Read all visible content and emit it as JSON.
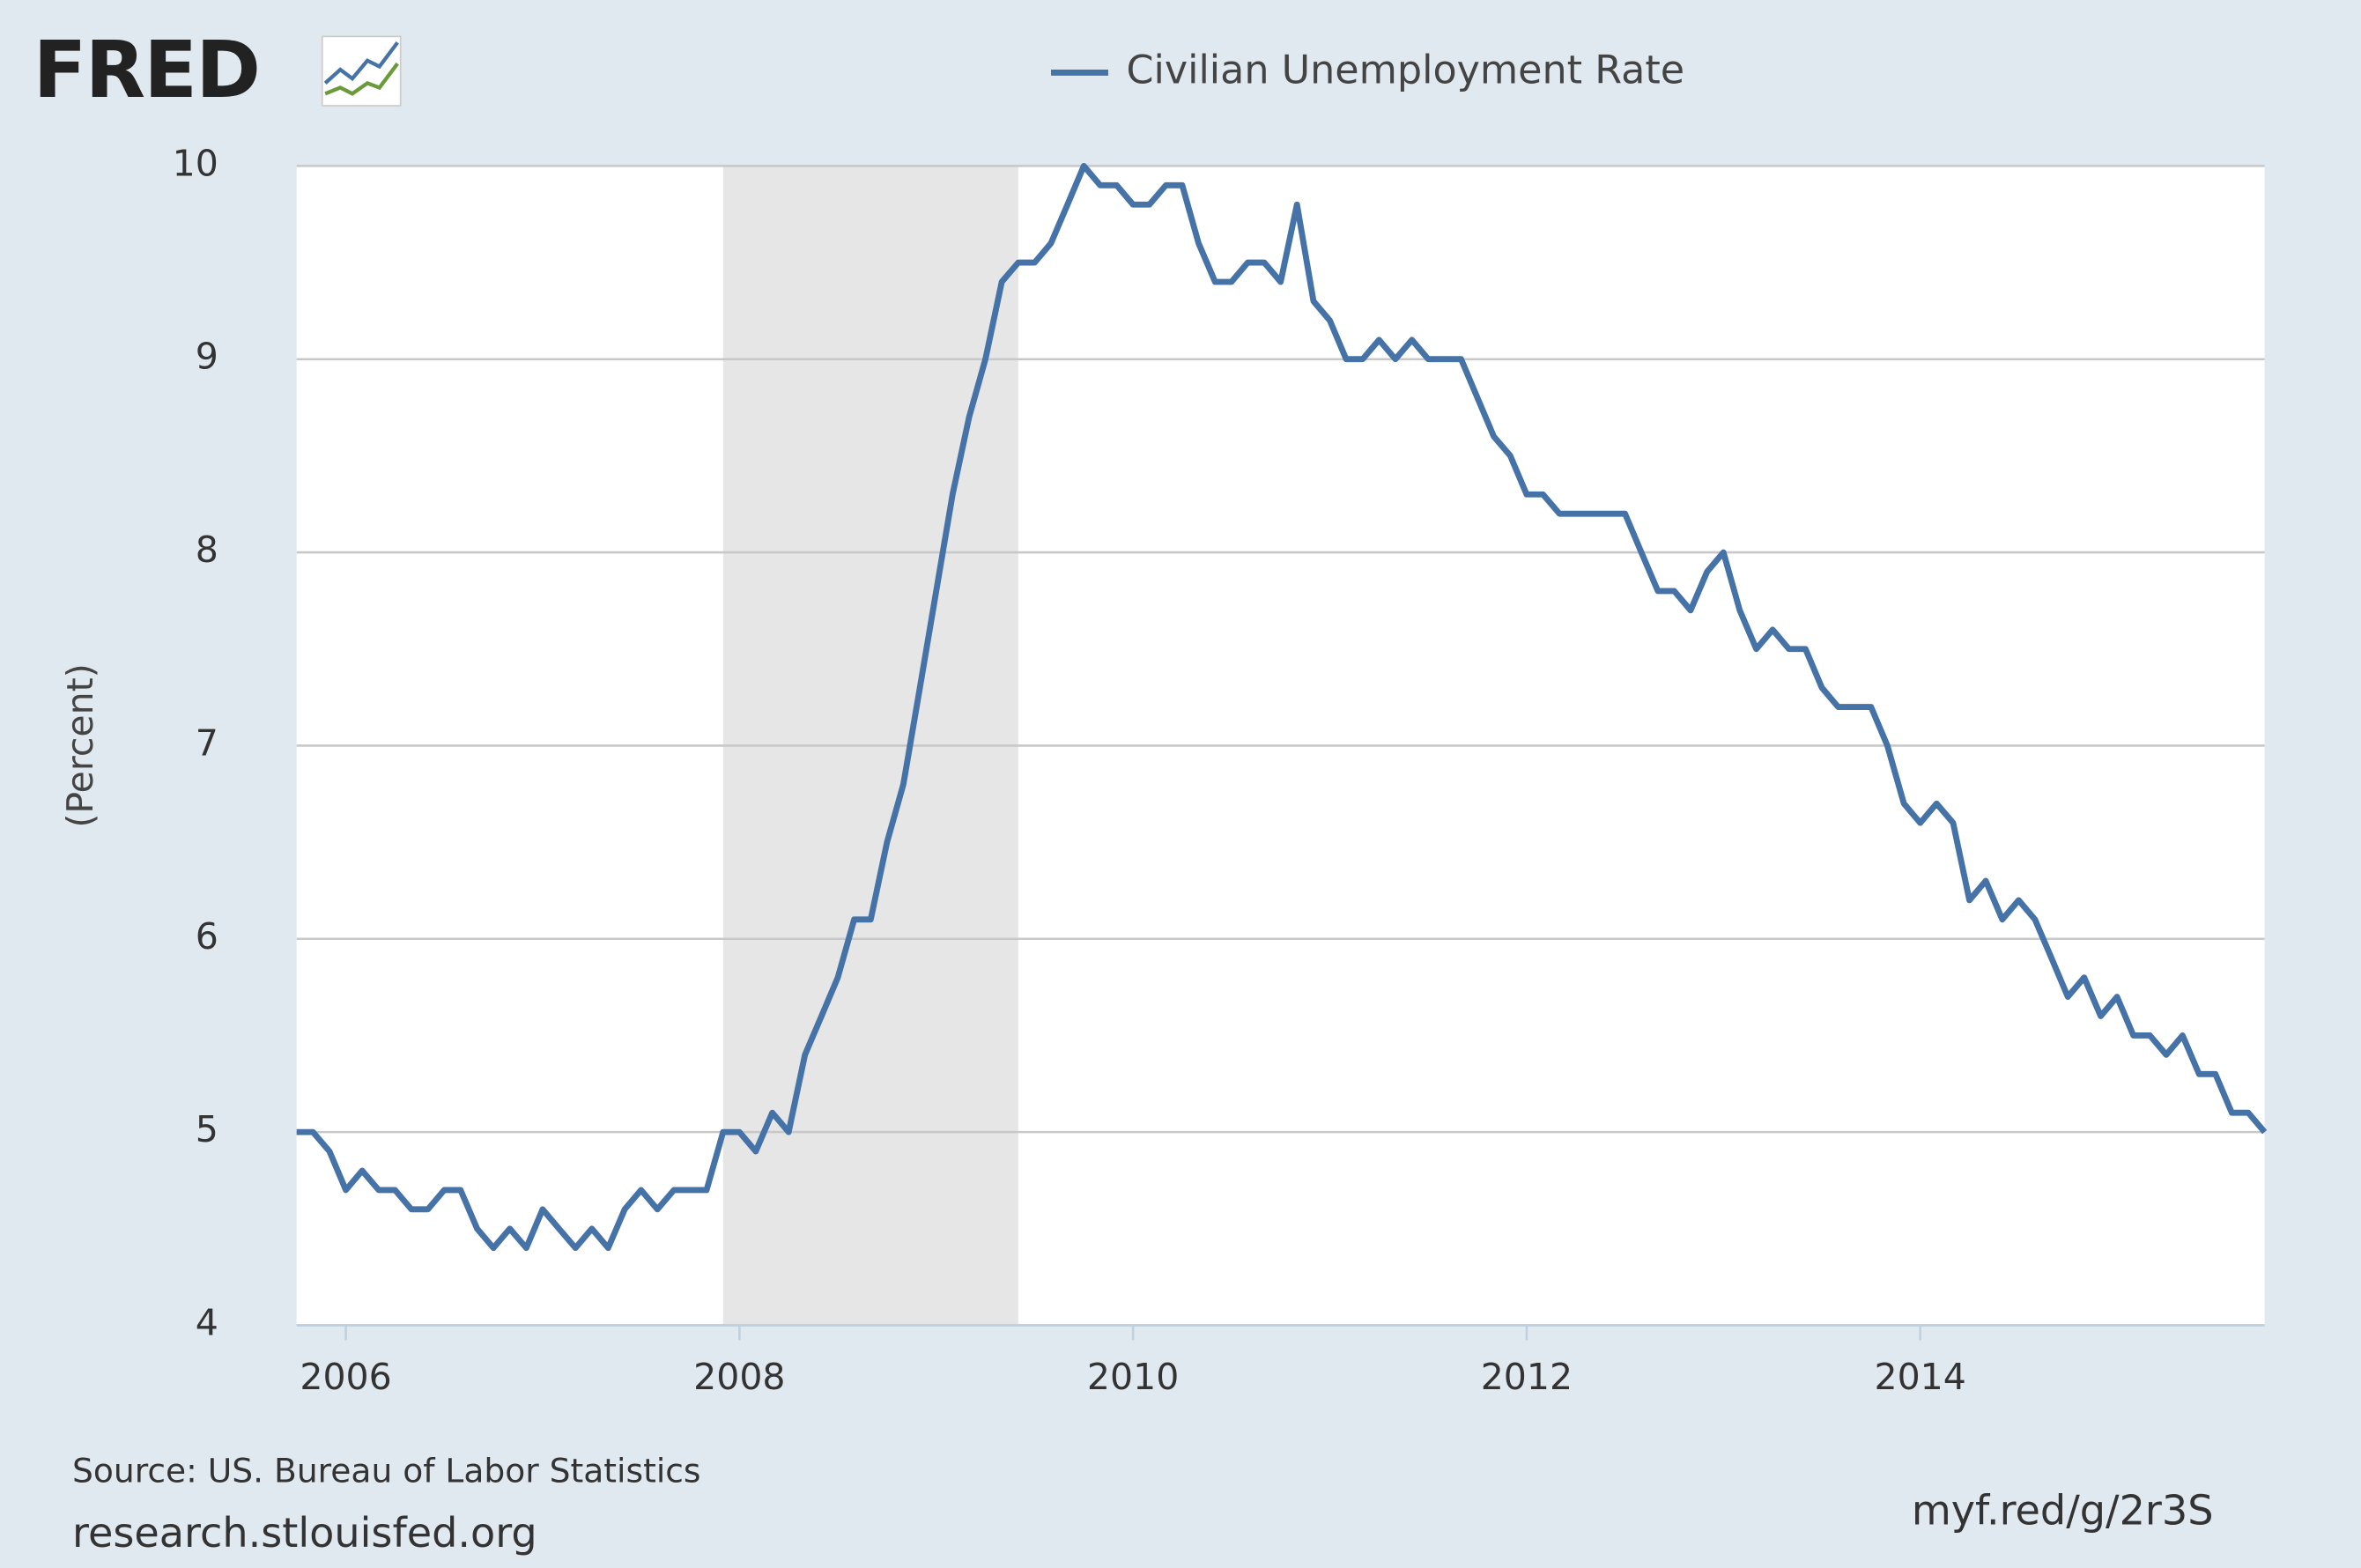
{
  "logo": "FRED",
  "chart_data": {
    "type": "line",
    "legend": "top",
    "grid": true,
    "y_label": "(Percent)",
    "source": "Source: US. Bureau of Labor Statistics",
    "site": "research.stlouisfed.org",
    "short_link": "myf.red/g/2r3S",
    "xlim": [
      2005.75,
      2015.75
    ],
    "xticks": [
      2006,
      2008,
      2010,
      2012,
      2014
    ],
    "ylim": [
      4,
      10
    ],
    "yticks": [
      4,
      5,
      6,
      7,
      8,
      9,
      10
    ],
    "shaded": [
      [
        2007.917,
        2009.417
      ]
    ],
    "shade_color": "#e6e6e6",
    "x": [
      2005.75,
      2005.833,
      2005.917,
      2006,
      2006.083,
      2006.167,
      2006.25,
      2006.333,
      2006.417,
      2006.5,
      2006.583,
      2006.667,
      2006.75,
      2006.833,
      2006.917,
      2007,
      2007.083,
      2007.167,
      2007.25,
      2007.333,
      2007.417,
      2007.5,
      2007.583,
      2007.667,
      2007.75,
      2007.833,
      2007.917,
      2008,
      2008.083,
      2008.167,
      2008.25,
      2008.333,
      2008.417,
      2008.5,
      2008.583,
      2008.667,
      2008.75,
      2008.833,
      2008.917,
      2009,
      2009.083,
      2009.167,
      2009.25,
      2009.333,
      2009.417,
      2009.5,
      2009.583,
      2009.667,
      2009.75,
      2009.833,
      2009.917,
      2010,
      2010.083,
      2010.167,
      2010.25,
      2010.333,
      2010.417,
      2010.5,
      2010.583,
      2010.667,
      2010.75,
      2010.833,
      2010.917,
      2011,
      2011.083,
      2011.167,
      2011.25,
      2011.333,
      2011.417,
      2011.5,
      2011.583,
      2011.667,
      2011.75,
      2011.833,
      2011.917,
      2012,
      2012.083,
      2012.167,
      2012.25,
      2012.333,
      2012.417,
      2012.5,
      2012.583,
      2012.667,
      2012.75,
      2012.833,
      2012.917,
      2013,
      2013.083,
      2013.167,
      2013.25,
      2013.333,
      2013.417,
      2013.5,
      2013.583,
      2013.667,
      2013.75,
      2013.833,
      2013.917,
      2014,
      2014.083,
      2014.167,
      2014.25,
      2014.333,
      2014.417,
      2014.5,
      2014.583,
      2014.667,
      2014.75,
      2014.833,
      2014.917,
      2015,
      2015.083,
      2015.167,
      2015.25,
      2015.333,
      2015.417,
      2015.5,
      2015.583,
      2015.667,
      2015.75
    ],
    "series": [
      {
        "name": "Civilian Unemployment Rate",
        "color": "#4572a7",
        "values": [
          5.0,
          5.0,
          4.9,
          4.7,
          4.8,
          4.7,
          4.7,
          4.6,
          4.6,
          4.7,
          4.7,
          4.5,
          4.4,
          4.5,
          4.4,
          4.6,
          4.5,
          4.4,
          4.5,
          4.4,
          4.6,
          4.7,
          4.6,
          4.7,
          4.7,
          4.7,
          5.0,
          5.0,
          4.9,
          5.1,
          5.0,
          5.4,
          5.6,
          5.8,
          6.1,
          6.1,
          6.5,
          6.8,
          7.3,
          7.8,
          8.3,
          8.7,
          9.0,
          9.4,
          9.5,
          9.5,
          9.6,
          9.8,
          10.0,
          9.9,
          9.9,
          9.8,
          9.8,
          9.9,
          9.9,
          9.6,
          9.4,
          9.4,
          9.5,
          9.5,
          9.4,
          9.8,
          9.3,
          9.2,
          9.0,
          9.0,
          9.1,
          9.0,
          9.1,
          9.0,
          9.0,
          9.0,
          8.8,
          8.6,
          8.5,
          8.3,
          8.3,
          8.2,
          8.2,
          8.2,
          8.2,
          8.2,
          8.0,
          7.8,
          7.8,
          7.7,
          7.9,
          8.0,
          7.7,
          7.5,
          7.6,
          7.5,
          7.5,
          7.3,
          7.2,
          7.2,
          7.2,
          7.0,
          6.7,
          6.6,
          6.7,
          6.6,
          6.2,
          6.3,
          6.1,
          6.2,
          6.1,
          5.9,
          5.7,
          5.8,
          5.6,
          5.7,
          5.5,
          5.5,
          5.4,
          5.5,
          5.3,
          5.3,
          5.1,
          5.1,
          5.0
        ]
      }
    ]
  }
}
